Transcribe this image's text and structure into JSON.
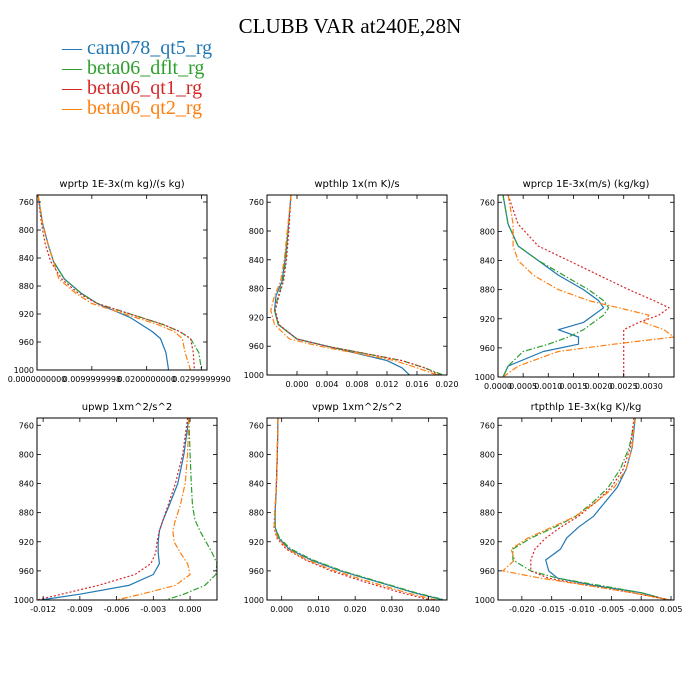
{
  "figure": {
    "title": "CLUBB VAR at240E,28N",
    "legend": [
      {
        "name": "cam078_qt5_rg",
        "color": "#1f77b4",
        "dash": "solid"
      },
      {
        "name": "beta06_dflt_rg",
        "color": "#2ca02c",
        "dash": "dashdot"
      },
      {
        "name": "beta06_qt1_rg",
        "color": "#d62728",
        "dash": "dot"
      },
      {
        "name": "beta06_qt2_rg",
        "color": "#ff7f0e",
        "dash": "dashdot"
      }
    ]
  },
  "chart_data": [
    {
      "type": "line",
      "title": "wprtp  1E-3x(m kg)/(s kg)",
      "ylim": [
        1000,
        750
      ],
      "yticks": [
        1000,
        960,
        920,
        880,
        840,
        800,
        760
      ],
      "xlim": [
        0,
        0.031
      ],
      "xticks": [
        {
          "v": 0.0,
          "label": "0.0000000000"
        },
        {
          "v": 0.01,
          "label": "0.0099999998"
        },
        {
          "v": 0.02,
          "label": "0.0200000000"
        },
        {
          "v": 0.03,
          "label": "0.0299999990"
        }
      ],
      "series": [
        {
          "x": [
            0.0002,
            0.001,
            0.002,
            0.003,
            0.005,
            0.008,
            0.011,
            0.014,
            0.017,
            0.019,
            0.021,
            0.0225,
            0.0235,
            0.024
          ],
          "y": [
            750,
            790,
            820,
            845,
            870,
            890,
            905,
            915,
            925,
            935,
            945,
            955,
            975,
            1000
          ]
        },
        {
          "x": [
            0.0002,
            0.001,
            0.002,
            0.003,
            0.005,
            0.008,
            0.011,
            0.015,
            0.019,
            0.023,
            0.026,
            0.028,
            0.0295,
            0.03
          ],
          "y": [
            750,
            790,
            820,
            845,
            870,
            890,
            905,
            915,
            925,
            935,
            945,
            955,
            975,
            1000
          ]
        },
        {
          "x": [
            0.0002,
            0.0008,
            0.0015,
            0.0025,
            0.0045,
            0.0075,
            0.011,
            0.015,
            0.019,
            0.023,
            0.026,
            0.028,
            0.0285,
            0.0287
          ],
          "y": [
            750,
            790,
            820,
            845,
            870,
            890,
            905,
            915,
            925,
            935,
            945,
            955,
            975,
            1000
          ]
        },
        {
          "x": [
            0.0002,
            0.001,
            0.002,
            0.003,
            0.004,
            0.007,
            0.01,
            0.014,
            0.018,
            0.022,
            0.025,
            0.0265,
            0.027,
            0.028
          ],
          "y": [
            750,
            790,
            820,
            845,
            870,
            890,
            905,
            915,
            925,
            935,
            945,
            955,
            975,
            1000
          ]
        }
      ]
    },
    {
      "type": "line",
      "title": "wpthlp  1x(m K)/s",
      "ylim": [
        1000,
        750
      ],
      "yticks": [
        1000,
        960,
        920,
        880,
        840,
        800,
        760
      ],
      "xlim": [
        -0.004,
        0.02
      ],
      "xticks": [
        {
          "v": 0.0,
          "label": "0.000"
        },
        {
          "v": 0.004,
          "label": "0.004"
        },
        {
          "v": 0.008,
          "label": "0.008"
        },
        {
          "v": 0.012,
          "label": "0.012"
        },
        {
          "v": 0.016,
          "label": "0.016"
        },
        {
          "v": 0.02,
          "label": "0.020"
        }
      ],
      "series": [
        {
          "x": [
            -0.0008,
            -0.0012,
            -0.0016,
            -0.002,
            -0.0028,
            -0.003,
            -0.0025,
            0.0,
            0.004,
            0.008,
            0.012,
            0.014,
            0.015
          ],
          "y": [
            750,
            800,
            840,
            870,
            890,
            910,
            930,
            950,
            960,
            970,
            980,
            990,
            1000
          ]
        },
        {
          "x": [
            -0.0008,
            -0.0012,
            -0.0015,
            -0.0019,
            -0.0025,
            -0.003,
            -0.0025,
            0.0,
            0.004,
            0.009,
            0.014,
            0.017,
            0.0195
          ],
          "y": [
            750,
            800,
            840,
            870,
            890,
            910,
            930,
            950,
            960,
            970,
            980,
            990,
            1000
          ]
        },
        {
          "x": [
            -0.0008,
            -0.0011,
            -0.0014,
            -0.0018,
            -0.0024,
            -0.0029,
            -0.0024,
            0.0,
            0.004,
            0.009,
            0.014,
            0.017,
            0.019
          ],
          "y": [
            750,
            800,
            840,
            870,
            890,
            910,
            930,
            950,
            960,
            970,
            980,
            990,
            1000
          ]
        },
        {
          "x": [
            -0.0008,
            -0.0013,
            -0.0017,
            -0.0022,
            -0.003,
            -0.0035,
            -0.003,
            -0.001,
            0.003,
            0.008,
            0.013,
            0.016,
            0.0187
          ],
          "y": [
            750,
            800,
            840,
            870,
            890,
            910,
            930,
            950,
            960,
            970,
            980,
            990,
            1000
          ]
        }
      ]
    },
    {
      "type": "line",
      "title": "wprcp  1E-3x(m/s) (kg/kg)",
      "ylim": [
        1000,
        750
      ],
      "yticks": [
        1000,
        960,
        920,
        880,
        840,
        800,
        760
      ],
      "xlim": [
        0,
        0.0035
      ],
      "xticks": [
        {
          "v": 0.0,
          "label": "0.0000"
        },
        {
          "v": 0.0005,
          "label": "0.0005"
        },
        {
          "v": 0.001,
          "label": "0.0010"
        },
        {
          "v": 0.0015,
          "label": "0.0015"
        },
        {
          "v": 0.002,
          "label": "0.0020"
        },
        {
          "v": 0.0025,
          "label": "0.0025"
        },
        {
          "v": 0.003,
          "label": "0.0030"
        }
      ],
      "series": [
        {
          "x": [
            0.0001,
            0.0002,
            0.0004,
            0.0008,
            0.0012,
            0.0017,
            0.002,
            0.0021,
            0.0019,
            0.0017,
            0.0012,
            0.0016,
            0.0016,
            0.0009,
            0.0002,
            0.0001
          ],
          "y": [
            750,
            790,
            820,
            840,
            860,
            880,
            895,
            905,
            915,
            925,
            935,
            945,
            955,
            965,
            985,
            1000
          ]
        },
        {
          "x": [
            0.0001,
            0.0002,
            0.0004,
            0.0008,
            0.0013,
            0.0018,
            0.0021,
            0.0022,
            0.0021,
            0.0019,
            0.0017,
            0.0014,
            0.001,
            0.0005,
            0.0002,
            0.0001
          ],
          "y": [
            750,
            790,
            820,
            840,
            860,
            880,
            895,
            905,
            915,
            925,
            935,
            945,
            955,
            965,
            985,
            1000
          ]
        },
        {
          "x": [
            0.0002,
            0.0004,
            0.0008,
            0.0014,
            0.002,
            0.0026,
            0.0031,
            0.0034,
            0.0032,
            0.0028,
            0.0025,
            0.0025,
            0.0025,
            0.0025,
            0.0025,
            0.0025
          ],
          "y": [
            750,
            790,
            820,
            840,
            860,
            880,
            895,
            905,
            915,
            925,
            935,
            945,
            955,
            965,
            985,
            1000
          ]
        },
        {
          "x": [
            0.0002,
            0.0003,
            0.0003,
            0.0004,
            0.0007,
            0.0012,
            0.0018,
            0.0024,
            0.003,
            0.0029,
            0.0033,
            0.0035,
            0.0023,
            0.0012,
            0.0004,
            0.0001
          ],
          "y": [
            750,
            790,
            820,
            840,
            860,
            880,
            895,
            905,
            915,
            925,
            935,
            945,
            955,
            965,
            985,
            1000
          ]
        }
      ]
    },
    {
      "type": "line",
      "title": "upwp  1xm^2/s^2",
      "ylim": [
        1000,
        750
      ],
      "yticks": [
        1000,
        960,
        920,
        880,
        840,
        800,
        760
      ],
      "xlim": [
        -0.0125,
        0.0022
      ],
      "xticks": [
        {
          "v": -0.012,
          "label": "-0.012"
        },
        {
          "v": -0.009,
          "label": "-0.009"
        },
        {
          "v": -0.006,
          "label": "-0.006"
        },
        {
          "v": -0.003,
          "label": "-0.003"
        },
        {
          "v": 0.0,
          "label": "0.000"
        }
      ],
      "series": [
        {
          "x": [
            -0.0001,
            -0.0005,
            -0.001,
            -0.0017,
            -0.0022,
            -0.0025,
            -0.0026,
            -0.0026,
            -0.0025,
            -0.003,
            -0.005,
            -0.009,
            -0.0122
          ],
          "y": [
            750,
            800,
            840,
            870,
            890,
            905,
            920,
            935,
            950,
            965,
            980,
            992,
            1000
          ]
        },
        {
          "x": [
            -0.0001,
            0.0,
            0.0001,
            0.0002,
            0.0004,
            0.0008,
            0.0013,
            0.0018,
            0.0022,
            0.0021,
            0.0012,
            -0.0005,
            -0.002
          ],
          "y": [
            750,
            800,
            840,
            870,
            890,
            905,
            920,
            935,
            950,
            965,
            980,
            992,
            1000
          ]
        },
        {
          "x": [
            -0.0002,
            -0.0006,
            -0.0012,
            -0.0018,
            -0.0022,
            -0.0025,
            -0.0027,
            -0.0028,
            -0.0032,
            -0.0045,
            -0.0075,
            -0.0105,
            -0.0125
          ],
          "y": [
            750,
            800,
            840,
            870,
            890,
            905,
            920,
            935,
            950,
            965,
            980,
            992,
            1000
          ]
        },
        {
          "x": [
            -0.0001,
            -0.0002,
            -0.0004,
            -0.0008,
            -0.0012,
            -0.0014,
            -0.0013,
            -0.0008,
            -0.0002,
            0.0,
            -0.0012,
            -0.004,
            -0.006
          ],
          "y": [
            750,
            800,
            840,
            870,
            890,
            905,
            920,
            935,
            950,
            965,
            980,
            992,
            1000
          ]
        }
      ]
    },
    {
      "type": "line",
      "title": "vpwp  1xm^2/s^2",
      "ylim": [
        1000,
        750
      ],
      "yticks": [
        1000,
        960,
        920,
        880,
        840,
        800,
        760
      ],
      "xlim": [
        -0.004,
        0.045
      ],
      "xticks": [
        {
          "v": 0.0,
          "label": "0.000"
        },
        {
          "v": 0.01,
          "label": "0.010"
        },
        {
          "v": 0.02,
          "label": "0.020"
        },
        {
          "v": 0.03,
          "label": "0.030"
        },
        {
          "v": 0.04,
          "label": "0.040"
        }
      ],
      "series": [
        {
          "x": [
            -0.001,
            -0.0012,
            -0.0015,
            -0.0018,
            -0.0018,
            -0.0008,
            0.002,
            0.008,
            0.016,
            0.026,
            0.036,
            0.044
          ],
          "y": [
            750,
            800,
            850,
            880,
            900,
            915,
            930,
            945,
            960,
            975,
            990,
            1000
          ]
        },
        {
          "x": [
            -0.001,
            -0.0012,
            -0.0015,
            -0.0018,
            -0.0018,
            -0.0006,
            0.0025,
            0.0085,
            0.0165,
            0.0265,
            0.0365,
            0.0445
          ],
          "y": [
            750,
            800,
            850,
            880,
            900,
            915,
            930,
            945,
            960,
            975,
            990,
            1000
          ]
        },
        {
          "x": [
            -0.001,
            -0.0012,
            -0.0015,
            -0.0019,
            -0.0021,
            -0.0013,
            0.0012,
            0.0065,
            0.0135,
            0.0225,
            0.0325,
            0.0405
          ],
          "y": [
            750,
            800,
            850,
            880,
            900,
            915,
            930,
            945,
            960,
            975,
            990,
            1000
          ]
        },
        {
          "x": [
            -0.001,
            -0.0012,
            -0.0015,
            -0.0019,
            -0.002,
            -0.0011,
            0.0016,
            0.007,
            0.0145,
            0.024,
            0.034,
            0.042
          ],
          "y": [
            750,
            800,
            850,
            880,
            900,
            915,
            930,
            945,
            960,
            975,
            990,
            1000
          ]
        }
      ]
    },
    {
      "type": "line",
      "title": "rtpthlp  1E-3x(kg K)/kg",
      "ylim": [
        1000,
        750
      ],
      "yticks": [
        1000,
        960,
        920,
        880,
        840,
        800,
        760
      ],
      "xlim": [
        -0.024,
        0.0055
      ],
      "xticks": [
        {
          "v": -0.02,
          "label": "-0.020"
        },
        {
          "v": -0.015,
          "label": "-0.015"
        },
        {
          "v": -0.01,
          "label": "-0.010"
        },
        {
          "v": -0.005,
          "label": "-0.005"
        },
        {
          "v": 0.0,
          "label": "-0.000"
        },
        {
          "v": 0.005,
          "label": "0.005"
        }
      ],
      "series": [
        {
          "x": [
            -0.001,
            -0.0015,
            -0.0025,
            -0.004,
            -0.006,
            -0.008,
            -0.0105,
            -0.0125,
            -0.0135,
            -0.016,
            -0.0155,
            -0.014,
            -0.008,
            0.0,
            0.0045
          ],
          "y": [
            750,
            790,
            820,
            845,
            865,
            885,
            900,
            915,
            930,
            945,
            960,
            970,
            980,
            990,
            1000
          ]
        },
        {
          "x": [
            -0.001,
            -0.002,
            -0.0035,
            -0.0055,
            -0.008,
            -0.011,
            -0.0145,
            -0.0185,
            -0.0215,
            -0.0215,
            -0.0185,
            -0.014,
            -0.007,
            0.0,
            0.0045
          ],
          "y": [
            750,
            790,
            820,
            845,
            865,
            885,
            900,
            915,
            930,
            945,
            960,
            970,
            980,
            990,
            1000
          ]
        },
        {
          "x": [
            -0.0012,
            -0.0018,
            -0.003,
            -0.005,
            -0.0075,
            -0.0105,
            -0.0135,
            -0.016,
            -0.0178,
            -0.0185,
            -0.0185,
            -0.0155,
            -0.009,
            -0.0015,
            0.0048
          ],
          "y": [
            750,
            790,
            820,
            845,
            865,
            885,
            900,
            915,
            930,
            945,
            960,
            970,
            980,
            990,
            1000
          ]
        },
        {
          "x": [
            -0.0011,
            -0.0015,
            -0.0025,
            -0.0045,
            -0.0075,
            -0.011,
            -0.015,
            -0.019,
            -0.0218,
            -0.0212,
            -0.0232,
            -0.0168,
            -0.009,
            -0.0015,
            0.0049
          ],
          "y": [
            750,
            790,
            820,
            845,
            865,
            885,
            900,
            915,
            930,
            945,
            960,
            970,
            980,
            990,
            1000
          ]
        }
      ]
    }
  ]
}
